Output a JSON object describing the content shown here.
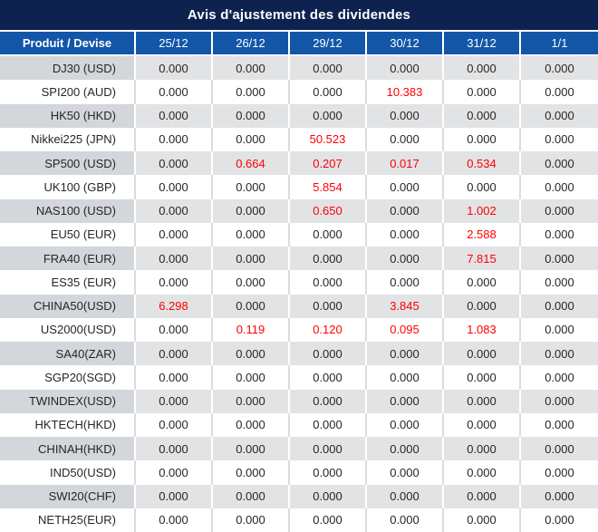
{
  "title": "Avis d'ajustement des dividendes",
  "columns": [
    "Produit / Devise",
    "25/12",
    "26/12",
    "29/12",
    "30/12",
    "31/12",
    "1/1"
  ],
  "rows": [
    {
      "product": "DJ30 (USD)",
      "values": [
        "0.000",
        "0.000",
        "0.000",
        "0.000",
        "0.000",
        "0.000"
      ]
    },
    {
      "product": "SPI200 (AUD)",
      "values": [
        "0.000",
        "0.000",
        "0.000",
        "10.383",
        "0.000",
        "0.000"
      ]
    },
    {
      "product": "HK50 (HKD)",
      "values": [
        "0.000",
        "0.000",
        "0.000",
        "0.000",
        "0.000",
        "0.000"
      ]
    },
    {
      "product": "Nikkei225 (JPN)",
      "values": [
        "0.000",
        "0.000",
        "50.523",
        "0.000",
        "0.000",
        "0.000"
      ]
    },
    {
      "product": "SP500 (USD)",
      "values": [
        "0.000",
        "0.664",
        "0.207",
        "0.017",
        "0.534",
        "0.000"
      ]
    },
    {
      "product": "UK100 (GBP)",
      "values": [
        "0.000",
        "0.000",
        "5.854",
        "0.000",
        "0.000",
        "0.000"
      ]
    },
    {
      "product": "NAS100 (USD)",
      "values": [
        "0.000",
        "0.000",
        "0.650",
        "0.000",
        "1.002",
        "0.000"
      ]
    },
    {
      "product": "EU50 (EUR)",
      "values": [
        "0.000",
        "0.000",
        "0.000",
        "0.000",
        "2.588",
        "0.000"
      ]
    },
    {
      "product": "FRA40 (EUR)",
      "values": [
        "0.000",
        "0.000",
        "0.000",
        "0.000",
        "7.815",
        "0.000"
      ]
    },
    {
      "product": "ES35 (EUR)",
      "values": [
        "0.000",
        "0.000",
        "0.000",
        "0.000",
        "0.000",
        "0.000"
      ]
    },
    {
      "product": "CHINA50(USD)",
      "values": [
        "6.298",
        "0.000",
        "0.000",
        "3.845",
        "0.000",
        "0.000"
      ]
    },
    {
      "product": "US2000(USD)",
      "values": [
        "0.000",
        "0.119",
        "0.120",
        "0.095",
        "1.083",
        "0.000"
      ]
    },
    {
      "product": "SA40(ZAR)",
      "values": [
        "0.000",
        "0.000",
        "0.000",
        "0.000",
        "0.000",
        "0.000"
      ]
    },
    {
      "product": "SGP20(SGD)",
      "values": [
        "0.000",
        "0.000",
        "0.000",
        "0.000",
        "0.000",
        "0.000"
      ]
    },
    {
      "product": "TWINDEX(USD)",
      "values": [
        "0.000",
        "0.000",
        "0.000",
        "0.000",
        "0.000",
        "0.000"
      ]
    },
    {
      "product": "HKTECH(HKD)",
      "values": [
        "0.000",
        "0.000",
        "0.000",
        "0.000",
        "0.000",
        "0.000"
      ]
    },
    {
      "product": "CHINAH(HKD)",
      "values": [
        "0.000",
        "0.000",
        "0.000",
        "0.000",
        "0.000",
        "0.000"
      ]
    },
    {
      "product": "IND50(USD)",
      "values": [
        "0.000",
        "0.000",
        "0.000",
        "0.000",
        "0.000",
        "0.000"
      ]
    },
    {
      "product": "SWI20(CHF)",
      "values": [
        "0.000",
        "0.000",
        "0.000",
        "0.000",
        "0.000",
        "0.000"
      ]
    },
    {
      "product": "NETH25(EUR)",
      "values": [
        "0.000",
        "0.000",
        "0.000",
        "0.000",
        "0.000",
        "0.000"
      ]
    }
  ],
  "colors": {
    "title_bg": "#0e2250",
    "header_bg": "#1356a8",
    "gray_product_bg": "#d3d6da",
    "gray_value_bg": "#e2e3e5",
    "text": "#262626",
    "highlight_red": "#ff0000",
    "white_row_divider": "#dcdcdc"
  },
  "zero_value": "0.000"
}
